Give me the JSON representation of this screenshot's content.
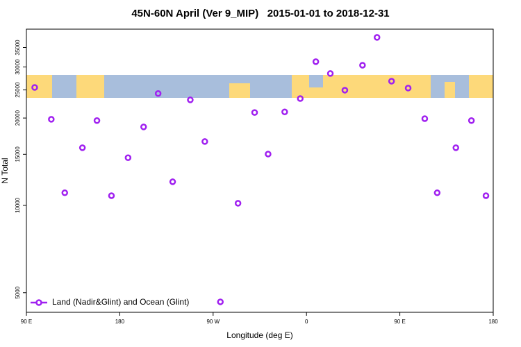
{
  "chart_data": {
    "type": "scatter",
    "title": "45N-60N April (Ver 9_MIP)   2015-01-01 to 2018-12-31",
    "xlabel": "Longitude (deg E)",
    "ylabel": "N Total",
    "xlim": [
      90,
      540
    ],
    "ylim": [
      4280,
      40500
    ],
    "log_y": true,
    "xticks": [
      {
        "value": 90,
        "label": "90 E"
      },
      {
        "value": 180,
        "label": "180"
      },
      {
        "value": 270,
        "label": "90 W"
      },
      {
        "value": 360,
        "label": "0"
      },
      {
        "value": 450,
        "label": "90 E"
      },
      {
        "value": 540,
        "label": "180"
      }
    ],
    "yticks": [
      5000,
      10000,
      15000,
      20000,
      25000,
      30000,
      35000
    ],
    "legend": "bottom-left",
    "series": [
      {
        "name": "Land (Nadir&Glint) and Ocean (Glint)",
        "color": "#a020f0",
        "x": [
          98,
          114,
          127,
          144,
          158,
          172,
          188,
          203,
          217,
          231,
          248,
          262,
          277,
          294,
          310,
          323,
          339,
          354,
          369,
          383,
          397,
          414,
          428,
          442,
          458,
          474,
          486,
          504,
          519,
          533
        ],
        "values": [
          25500,
          19800,
          11050,
          15800,
          19600,
          10800,
          14600,
          18640,
          24300,
          12060,
          23100,
          16600,
          4650,
          10170,
          20900,
          15030,
          21000,
          23350,
          31280,
          28480,
          24950,
          30420,
          37930,
          26800,
          25370,
          19900,
          11050,
          15800,
          19600,
          10800
        ]
      }
    ]
  }
}
